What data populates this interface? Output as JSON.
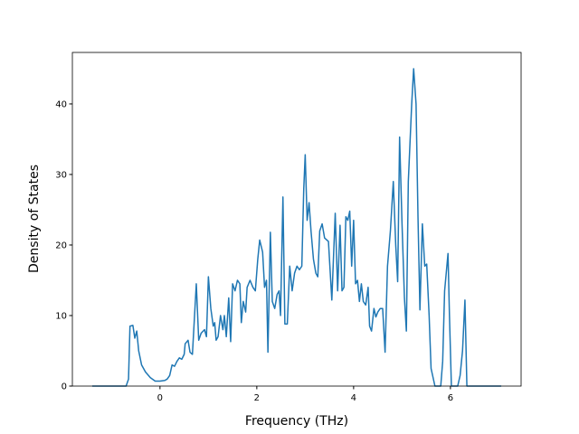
{
  "chart_data": {
    "type": "line",
    "x_label": "Frequency (THz)",
    "y_label": "Density of States",
    "xlim": [
      -1.81,
      7.46
    ],
    "ylim": [
      0,
      47.3
    ],
    "xticks": [
      0,
      2,
      4,
      6
    ],
    "yticks": [
      0,
      10,
      20,
      30,
      40
    ],
    "series": [
      {
        "color": "#1f77b4",
        "x": [
          -1.4,
          -0.7,
          -0.65,
          -0.62,
          -0.56,
          -0.52,
          -0.48,
          -0.44,
          -0.38,
          -0.3,
          -0.2,
          -0.1,
          0,
          0.1,
          0.15,
          0.2,
          0.25,
          0.3,
          0.35,
          0.4,
          0.45,
          0.5,
          0.52,
          0.58,
          0.62,
          0.67,
          0.75,
          0.8,
          0.85,
          0.92,
          0.96,
          1.0,
          1.05,
          1.1,
          1.13,
          1.16,
          1.2,
          1.25,
          1.3,
          1.33,
          1.37,
          1.42,
          1.46,
          1.5,
          1.55,
          1.6,
          1.65,
          1.68,
          1.72,
          1.77,
          1.8,
          1.86,
          1.92,
          1.97,
          2.02,
          2.06,
          2.12,
          2.16,
          2.2,
          2.23,
          2.28,
          2.32,
          2.37,
          2.42,
          2.46,
          2.49,
          2.54,
          2.58,
          2.63,
          2.68,
          2.73,
          2.78,
          2.83,
          2.88,
          2.93,
          2.97,
          3.0,
          3.04,
          3.08,
          3.12,
          3.17,
          3.22,
          3.26,
          3.3,
          3.35,
          3.4,
          3.48,
          3.55,
          3.62,
          3.67,
          3.72,
          3.76,
          3.8,
          3.84,
          3.88,
          3.92,
          3.96,
          4.0,
          4.04,
          4.08,
          4.12,
          4.16,
          4.2,
          4.25,
          4.3,
          4.33,
          4.37,
          4.42,
          4.46,
          4.5,
          4.55,
          4.6,
          4.65,
          4.7,
          4.76,
          4.82,
          4.87,
          4.91,
          4.95,
          5.0,
          5.05,
          5.09,
          5.13,
          5.2,
          5.24,
          5.29,
          5.33,
          5.37,
          5.42,
          5.47,
          5.51,
          5.56,
          5.6,
          5.68,
          5.8,
          5.84,
          5.88,
          5.95,
          5.98,
          6.02,
          6.15,
          6.2,
          6.25,
          6.3,
          6.34,
          7.05
        ],
        "values": [
          0,
          0,
          1,
          8.5,
          8.6,
          6.8,
          7.8,
          5,
          3,
          2,
          1.2,
          0.7,
          0.7,
          0.8,
          1,
          1.5,
          3,
          2.8,
          3.5,
          4,
          3.8,
          4.5,
          6,
          6.5,
          4.8,
          4.5,
          14.5,
          6.5,
          7.5,
          8,
          7,
          15.5,
          11,
          8.5,
          9,
          6.5,
          7,
          10,
          8,
          10,
          7,
          12.5,
          6.3,
          14.5,
          13.5,
          15,
          14.5,
          9,
          12,
          10.5,
          14,
          15,
          14,
          13.5,
          18,
          20.7,
          19,
          14,
          15,
          4.8,
          21.8,
          12,
          11,
          13,
          13.5,
          10,
          26.8,
          8.8,
          8.8,
          17,
          13.5,
          16,
          17,
          16.5,
          17,
          28,
          32.8,
          23.5,
          26,
          22,
          18,
          16,
          15.5,
          22,
          23,
          21,
          20.5,
          12.2,
          24.5,
          13.5,
          22.8,
          13.5,
          14,
          24,
          23.5,
          24.8,
          17,
          23.5,
          14.5,
          15,
          12,
          14.5,
          12,
          11.5,
          14,
          8.5,
          7.8,
          11,
          9.8,
          10.5,
          11,
          11,
          4.8,
          17,
          22,
          29,
          20,
          14.8,
          35.3,
          23,
          12.5,
          7.8,
          29,
          40,
          45,
          40,
          24,
          10.8,
          23,
          17,
          17.3,
          10,
          2.5,
          0,
          0,
          3.5,
          13.5,
          18.8,
          10,
          0,
          0,
          1.5,
          5,
          12.2,
          0,
          0
        ]
      }
    ]
  }
}
